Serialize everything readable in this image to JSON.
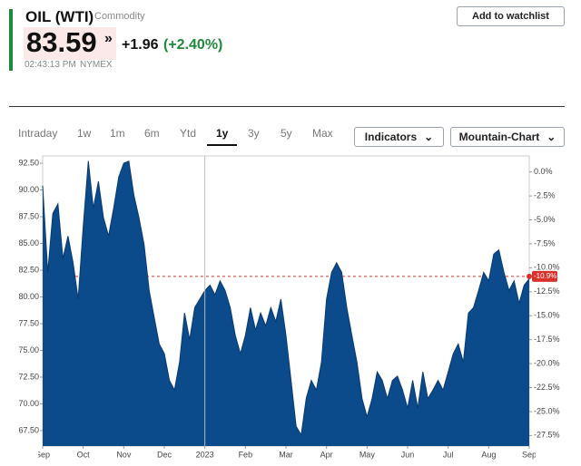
{
  "header": {
    "symbol": "OIL (WTI)",
    "category": "Commodity",
    "price": "83.59",
    "change": "+1.96",
    "change_pct": "(+2.40%)",
    "time": "02:43:13 PM",
    "exchange": "NYMEX",
    "watchlist_button": "Add to watchlist"
  },
  "tabs": {
    "items": [
      "Intraday",
      "1w",
      "1m",
      "6m",
      "Ytd",
      "1y",
      "3y",
      "5y",
      "Max"
    ],
    "active": 5
  },
  "dropdowns": [
    "Indicators",
    "Mountain-Chart"
  ],
  "chart_data": {
    "type": "area",
    "color": "#0b4a8b",
    "categories": [
      "Sep",
      null,
      null,
      null,
      null,
      null,
      null,
      null,
      "Oct",
      null,
      null,
      null,
      null,
      null,
      null,
      null,
      "Nov",
      null,
      null,
      null,
      null,
      null,
      null,
      null,
      "Dec",
      null,
      null,
      null,
      null,
      null,
      null,
      null,
      "2023",
      null,
      null,
      null,
      null,
      null,
      null,
      null,
      "Feb",
      null,
      null,
      null,
      null,
      null,
      null,
      null,
      "Mar",
      null,
      null,
      null,
      null,
      null,
      null,
      null,
      "Apr",
      null,
      null,
      null,
      null,
      null,
      null,
      null,
      "May",
      null,
      null,
      null,
      null,
      null,
      null,
      null,
      "Jun",
      null,
      null,
      null,
      null,
      null,
      null,
      null,
      "Jul",
      null,
      null,
      null,
      null,
      null,
      null,
      null,
      "Aug",
      null,
      null,
      null,
      null,
      null,
      null,
      null,
      "Sep"
    ],
    "values": [
      90.4,
      82.3,
      87.8,
      88.7,
      83.6,
      85.7,
      83.2,
      79.8,
      86.6,
      92.7,
      88.3,
      90.8,
      87.4,
      85.7,
      88.3,
      91.2,
      92.5,
      92.7,
      89.5,
      87.4,
      84.9,
      80.6,
      78.1,
      75.6,
      74.7,
      72.2,
      71.3,
      73.9,
      78.5,
      76.0,
      79.0,
      79.8,
      80.6,
      81.1,
      80.2,
      81.5,
      80.6,
      79.0,
      76.4,
      74.7,
      76.4,
      79.0,
      76.9,
      78.5,
      77.3,
      79.0,
      77.7,
      79.8,
      76.4,
      72.2,
      67.9,
      67.1,
      70.5,
      72.2,
      71.3,
      73.9,
      79.8,
      82.3,
      83.2,
      82.3,
      79.0,
      76.4,
      73.9,
      70.5,
      68.8,
      70.5,
      73.0,
      72.2,
      70.5,
      72.2,
      72.6,
      71.3,
      69.6,
      72.2,
      69.6,
      73.0,
      70.5,
      71.3,
      72.2,
      71.3,
      73.0,
      74.7,
      75.6,
      73.9,
      78.5,
      79.0,
      80.6,
      82.3,
      81.5,
      84.0,
      84.4,
      82.3,
      80.6,
      81.5,
      79.4,
      81.1,
      81.7
    ],
    "ylim": [
      66.06,
      93.18
    ],
    "yticks": [
      {
        "value": 92.5,
        "label": "92.50"
      },
      {
        "value": 90,
        "label": "90.00"
      },
      {
        "value": 87.5,
        "label": "87.50"
      },
      {
        "value": 85,
        "label": "85.00"
      },
      {
        "value": 82.5,
        "label": "82.50"
      },
      {
        "value": 80,
        "label": "80.00"
      },
      {
        "value": 77.5,
        "label": "77.50"
      },
      {
        "value": 75,
        "label": "75.00"
      },
      {
        "value": 72.5,
        "label": "72.50"
      },
      {
        "value": 70,
        "label": "70.00"
      },
      {
        "value": 67.5,
        "label": "67.50"
      }
    ],
    "y2lim": [
      -28.6,
      1.67
    ],
    "y2ticks": [
      {
        "value": 0,
        "label": "0.0%"
      },
      {
        "value": -2.5,
        "label": "-2.5%"
      },
      {
        "value": -5,
        "label": "-5.0%"
      },
      {
        "value": -7.5,
        "label": "-7.5%"
      },
      {
        "value": -10,
        "label": "-10.0%"
      },
      {
        "value": -12.5,
        "label": "-12.5%"
      },
      {
        "value": -15,
        "label": "-15.0%"
      },
      {
        "value": -17.5,
        "label": "-17.5%"
      },
      {
        "value": -20,
        "label": "-20.0%"
      },
      {
        "value": -22.5,
        "label": "-22.5%"
      },
      {
        "value": -25,
        "label": "-25.0%"
      },
      {
        "value": -27.5,
        "label": "-27.5%"
      }
    ],
    "last_value": {
      "value": -10.9,
      "label": "-10.9%",
      "color": "#d9302c"
    }
  }
}
